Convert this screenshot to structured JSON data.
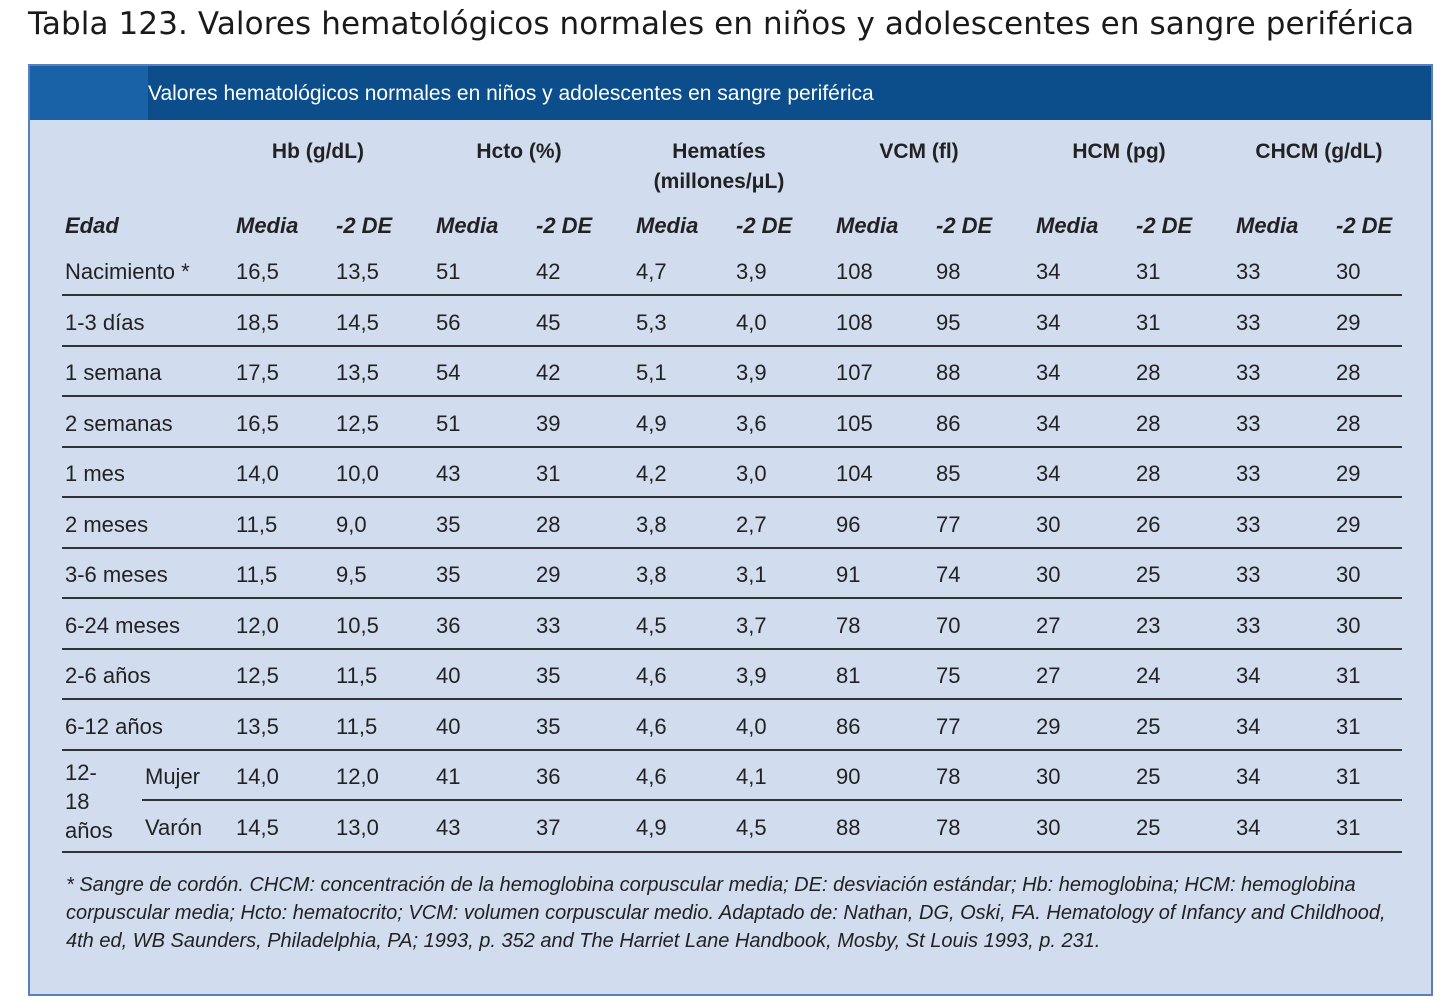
{
  "page_title": "Tabla 123. Valores hematológicos normales en niños y adolescentes en sangre periférica",
  "table": {
    "caption": "Valores hematológicos normales en niños y adolescentes en sangre periférica",
    "groups": [
      "Hb (g/dL)",
      "Hcto (%)",
      "Hematíes",
      "VCM (fl)",
      "HCM (pg)",
      "CHCM (g/dL)"
    ],
    "hematies_unit": "(millones/μL)",
    "age_header": "Edad",
    "sub_headers": [
      "Media",
      "-2 DE"
    ],
    "rows": [
      {
        "edad": "Nacimiento *",
        "values": [
          "16,5",
          "13,5",
          "51",
          "42",
          "4,7",
          "3,9",
          "108",
          "98",
          "34",
          "31",
          "33",
          "30"
        ]
      },
      {
        "edad": "1-3 días",
        "values": [
          "18,5",
          "14,5",
          "56",
          "45",
          "5,3",
          "4,0",
          "108",
          "95",
          "34",
          "31",
          "33",
          "29"
        ]
      },
      {
        "edad": "1 semana",
        "values": [
          "17,5",
          "13,5",
          "54",
          "42",
          "5,1",
          "3,9",
          "107",
          "88",
          "34",
          "28",
          "33",
          "28"
        ]
      },
      {
        "edad": "2 semanas",
        "values": [
          "16,5",
          "12,5",
          "51",
          "39",
          "4,9",
          "3,6",
          "105",
          "86",
          "34",
          "28",
          "33",
          "28"
        ]
      },
      {
        "edad": "1 mes",
        "values": [
          "14,0",
          "10,0",
          "43",
          "31",
          "4,2",
          "3,0",
          "104",
          "85",
          "34",
          "28",
          "33",
          "29"
        ]
      },
      {
        "edad": "2 meses",
        "values": [
          "11,5",
          "9,0",
          "35",
          "28",
          "3,8",
          "2,7",
          "96",
          "77",
          "30",
          "26",
          "33",
          "29"
        ]
      },
      {
        "edad": "3-6 meses",
        "values": [
          "11,5",
          "9,5",
          "35",
          "29",
          "3,8",
          "3,1",
          "91",
          "74",
          "30",
          "25",
          "33",
          "30"
        ]
      },
      {
        "edad": "6-24 meses",
        "values": [
          "12,0",
          "10,5",
          "36",
          "33",
          "4,5",
          "3,7",
          "78",
          "70",
          "27",
          "23",
          "33",
          "30"
        ]
      },
      {
        "edad": "2-6 años",
        "values": [
          "12,5",
          "11,5",
          "40",
          "35",
          "4,6",
          "3,9",
          "81",
          "75",
          "27",
          "24",
          "34",
          "31"
        ]
      },
      {
        "edad": "6-12 años",
        "values": [
          "13,5",
          "11,5",
          "40",
          "35",
          "4,6",
          "4,0",
          "86",
          "77",
          "29",
          "25",
          "34",
          "31"
        ]
      }
    ],
    "teen": {
      "label_lines": [
        "12-",
        "18",
        "años"
      ],
      "rows": [
        {
          "sexo": "Mujer",
          "values": [
            "14,0",
            "12,0",
            "41",
            "36",
            "4,6",
            "4,1",
            "90",
            "78",
            "30",
            "25",
            "34",
            "31"
          ]
        },
        {
          "sexo": "Varón",
          "values": [
            "14,5",
            "13,0",
            "43",
            "37",
            "4,9",
            "4,5",
            "88",
            "78",
            "30",
            "25",
            "34",
            "31"
          ]
        }
      ]
    },
    "footnote": "* Sangre de cordón. CHCM: concentración de la hemoglobina corpuscular media; DE: desviación estándar; Hb: hemoglobina; HCM: hemoglobina corpuscular media; Hcto: hematocrito; VCM: volumen corpuscular medio. Adaptado de: Nathan, DG, Oski, FA. Hematology of Infancy and Childhood, 4th ed, WB Saunders, Philadelphia, PA; 1993, p. 352 and The Harriet Lane Handbook, Mosby, St Louis 1993, p. 231."
  },
  "colors": {
    "header_bar": "#0c4d8c",
    "header_accent": "#1a62a8",
    "panel_background": "#d2dcef",
    "panel_border": "#5a7fbf"
  }
}
